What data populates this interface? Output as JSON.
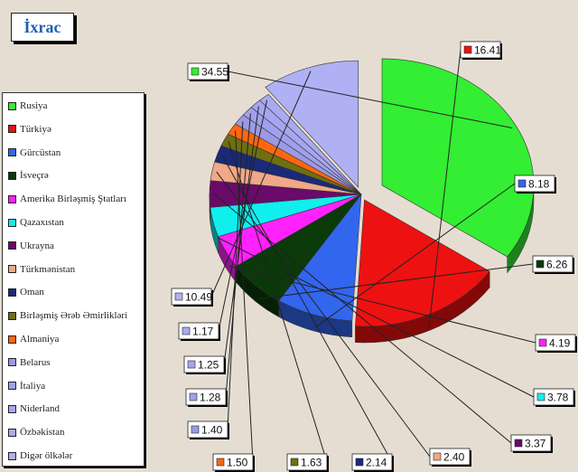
{
  "title": "İxrac",
  "chart_data": {
    "type": "pie",
    "title": "İxrac",
    "legend_position": "left",
    "series": [
      {
        "name": "Rusiya",
        "value": 34.55,
        "color": "#33ee33"
      },
      {
        "name": "Türkiyə",
        "value": 16.41,
        "color": "#ee1111"
      },
      {
        "name": "Gürcüstan",
        "value": 8.18,
        "color": "#3366ee"
      },
      {
        "name": "İsveçrə",
        "value": 6.26,
        "color": "#0a3a0a"
      },
      {
        "name": "Amerika Birləşmiş Ştatları",
        "value": 4.19,
        "color": "#ff22ff"
      },
      {
        "name": "Qazaxıstan",
        "value": 3.78,
        "color": "#11eeee"
      },
      {
        "name": "Ukrayna",
        "value": 3.37,
        "color": "#6a0a6a"
      },
      {
        "name": "Türkmənistan",
        "value": 2.4,
        "color": "#f0a888"
      },
      {
        "name": "Oman",
        "value": 2.14,
        "color": "#1a2a7a"
      },
      {
        "name": "Birləşmiş Ərəb Əmirlikləri",
        "value": 1.63,
        "color": "#6f6f10"
      },
      {
        "name": "Almaniya",
        "value": 1.5,
        "color": "#ff6611"
      },
      {
        "name": "Belarus",
        "value": 1.4,
        "color": "#9a9ae6"
      },
      {
        "name": "İtaliya",
        "value": 1.28,
        "color": "#a0a0ee"
      },
      {
        "name": "Niderland",
        "value": 1.25,
        "color": "#a6a6f0"
      },
      {
        "name": "Özbəkistan",
        "value": 1.17,
        "color": "#aaaaf2"
      },
      {
        "name": "Digər ölkələr",
        "value": 10.49,
        "color": "#b0b0f4"
      }
    ]
  }
}
